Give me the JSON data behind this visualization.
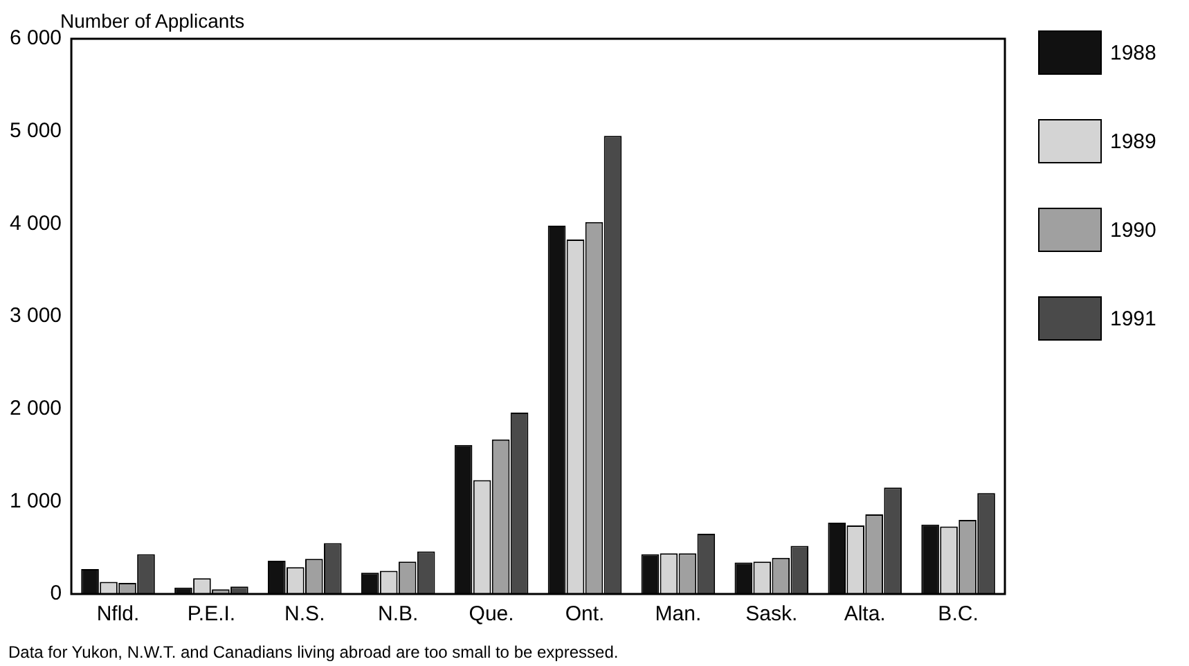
{
  "chart_data": {
    "type": "bar",
    "ylabel": "Number of Applicants",
    "categories": [
      "Nfld.",
      "P.E.I.",
      "N.S.",
      "N.B.",
      "Que.",
      "Ont.",
      "Man.",
      "Sask.",
      "Alta.",
      "B.C."
    ],
    "series": [
      {
        "name": "1988",
        "color": "#111111",
        "values": [
          270,
          70,
          360,
          230,
          1610,
          3980,
          430,
          340,
          770,
          750
        ]
      },
      {
        "name": "1989",
        "color": "#d4d4d4",
        "values": [
          130,
          170,
          290,
          250,
          1230,
          3830,
          440,
          350,
          740,
          730
        ]
      },
      {
        "name": "1990",
        "color": "#a0a0a0",
        "values": [
          120,
          50,
          380,
          350,
          1670,
          4020,
          440,
          390,
          860,
          800
        ]
      },
      {
        "name": "1991",
        "color": "#4a4a4a",
        "values": [
          430,
          80,
          550,
          460,
          1960,
          4950,
          650,
          520,
          1150,
          1090
        ]
      }
    ],
    "ylim": [
      0,
      6000
    ],
    "yticks": [
      0,
      {
        "value": 1000,
        "label": "1 000"
      },
      {
        "value": 2000,
        "label": "2 000"
      },
      {
        "value": 3000,
        "label": "3 000"
      },
      {
        "value": 4000,
        "label": "4 000"
      },
      {
        "value": 5000,
        "label": "5 000"
      },
      {
        "value": 6000,
        "label": "6 000"
      }
    ],
    "grid": false,
    "legend": "top right",
    "annotations": [
      "Data for Yukon, N.W.T. and Canadians living abroad are too small to be expressed."
    ]
  }
}
